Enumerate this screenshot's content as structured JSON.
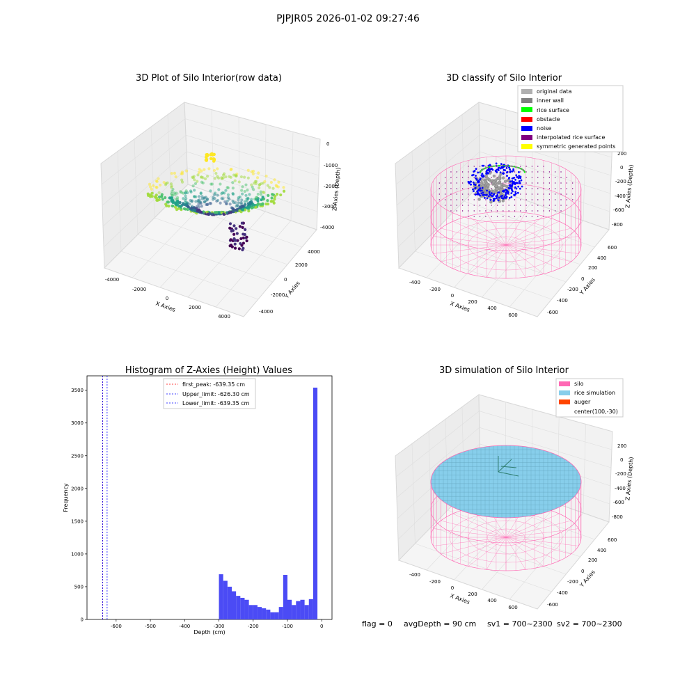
{
  "figure_title": "PJPJR05 2026-01-02 09:27:46",
  "panels": {
    "raw": {
      "title": "3D Plot of Silo Interior(row data)",
      "xlabel": "X Axies",
      "ylabel": "Y Axies",
      "zlabel": "Z Axies (Depth)",
      "xticks": [
        "-4000",
        "-2000",
        "0",
        "2000",
        "4000"
      ],
      "yticks": [
        "-4000",
        "-2000",
        "0",
        "2000",
        "4000"
      ],
      "zticks": [
        "0",
        "-1000",
        "-2000",
        "-3000",
        "-4000"
      ]
    },
    "classify": {
      "title": "3D classify of Silo Interior",
      "xlabel": "X Axies",
      "ylabel": "Y Axies",
      "zlabel": "Z Axies (Depth)",
      "xticks": [
        "-400",
        "-200",
        "0",
        "200",
        "400",
        "600"
      ],
      "yticks": [
        "-600",
        "-400",
        "-200",
        "0",
        "200",
        "400",
        "600"
      ],
      "zticks": [
        "200",
        "0",
        "-200",
        "-400",
        "-600",
        "-800"
      ],
      "legend": [
        {
          "label": "original data",
          "color": "#b0b0b0"
        },
        {
          "label": "inner wall",
          "color": "#808080"
        },
        {
          "label": "rice surface",
          "color": "#00ff00"
        },
        {
          "label": "obstacle",
          "color": "#ff0000"
        },
        {
          "label": "noise",
          "color": "#0000ff"
        },
        {
          "label": "interpolated rice surface",
          "color": "#800080"
        },
        {
          "label": "symmetric generated points",
          "color": "#ffff00"
        }
      ]
    },
    "simulation": {
      "title": "3D simulation of Silo Interior",
      "xlabel": "X Axies",
      "ylabel": "Y Axies",
      "zlabel": "Z Axies (Depth)",
      "xticks": [
        "-400",
        "-200",
        "0",
        "200",
        "400",
        "600"
      ],
      "yticks": [
        "-600",
        "-400",
        "-200",
        "0",
        "200",
        "400",
        "600"
      ],
      "zticks": [
        "200",
        "0",
        "-200",
        "-400",
        "-600",
        "-800"
      ],
      "legend": [
        {
          "label": "silo",
          "color": "#ff69b4"
        },
        {
          "label": "rice simulation",
          "color": "#87ceeb"
        },
        {
          "label": "auger",
          "color": "#ff4500"
        },
        {
          "label": "center(100,-30)",
          "color": ""
        }
      ]
    }
  },
  "chart_data": {
    "type": "bar",
    "title": "Histogram of Z-Axies (Height) Values",
    "xlabel": "Depth (cm)",
    "ylabel": "Frequency",
    "xlim": [
      -685,
      30
    ],
    "ylim": [
      0,
      3720
    ],
    "xticks": [
      -600,
      -500,
      -400,
      -300,
      -200,
      -100,
      0
    ],
    "yticks": [
      0,
      500,
      1000,
      1500,
      2000,
      2500,
      3000,
      3500
    ],
    "bar_color": "#4b4bf5",
    "bin_edges": [
      -300,
      -287.5,
      -275,
      -262.5,
      -250,
      -237.5,
      -225,
      -212.5,
      -200,
      -187.5,
      -175,
      -162.5,
      -150,
      -137.5,
      -125,
      -112.5,
      -100,
      -87.5,
      -75,
      -62.5,
      -50,
      -37.5,
      -25,
      -12.5,
      0
    ],
    "counts": [
      690,
      590,
      500,
      430,
      360,
      330,
      300,
      220,
      220,
      190,
      170,
      150,
      110,
      110,
      190,
      680,
      300,
      220,
      280,
      300,
      220,
      310,
      3540,
      0
    ],
    "reference_lines": [
      {
        "label": "first_peak: -639.35 cm",
        "x": -639.35,
        "color": "#ff0000"
      },
      {
        "label": "Upper_limit: -626.30 cm",
        "x": -626.3,
        "color": "#0000ff"
      },
      {
        "label": "Lower_limit: -639.35 cm",
        "x": -639.35,
        "color": "#0000ff"
      }
    ],
    "legend_position": "top-center"
  },
  "footer": {
    "flag": "flag = 0",
    "avg_depth": "avgDepth = 90 cm",
    "sv1": "sv1 = 700~2300",
    "sv2": "sv2 = 700~2300"
  }
}
